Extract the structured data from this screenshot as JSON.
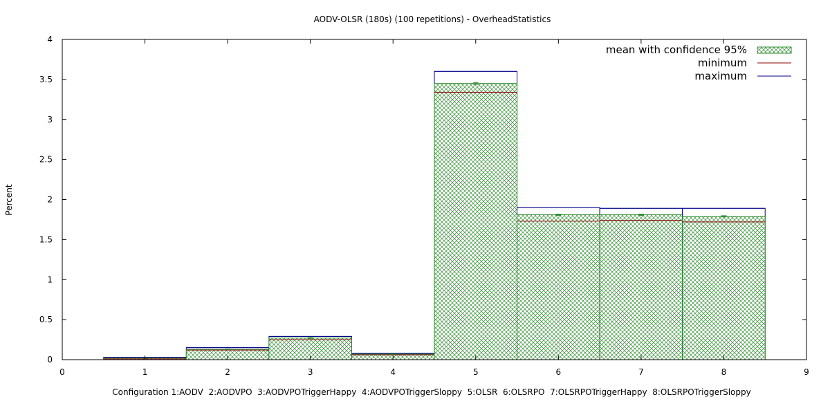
{
  "chart_data": {
    "type": "bar",
    "title": "AODV-OLSR (180s) (100 repetitions) - OverheadStatistics",
    "xlabel": "Configuration 1:AODV  2:AODVPO  3:AODVPOTriggerHappy  4:AODVPOTriggerSloppy  5:OLSR  6:OLSRPO  7:OLSRPOTriggerHappy  8:OLSRPOTriggerSloppy",
    "ylabel": "Percent",
    "xlim": [
      0,
      9
    ],
    "ylim": [
      0,
      4
    ],
    "xticks": [
      "0",
      "1",
      "2",
      "3",
      "4",
      "5",
      "6",
      "7",
      "8",
      "9"
    ],
    "yticks": [
      "0",
      "0.5",
      "1",
      "1.5",
      "2",
      "2.5",
      "3",
      "3.5",
      "4"
    ],
    "x": [
      1,
      2,
      3,
      4,
      5,
      6,
      7,
      8
    ],
    "series": [
      {
        "name": "mean with confidence 95%",
        "values": [
          0.02,
          0.13,
          0.27,
          0.07,
          3.45,
          1.81,
          1.81,
          1.79
        ],
        "ci": [
          0.003,
          0.004,
          0.006,
          0.003,
          0.012,
          0.008,
          0.008,
          0.008
        ]
      },
      {
        "name": "minimum",
        "values": [
          0.01,
          0.12,
          0.25,
          0.06,
          3.34,
          1.73,
          1.74,
          1.72
        ]
      },
      {
        "name": "maximum",
        "values": [
          0.03,
          0.15,
          0.29,
          0.08,
          3.6,
          1.9,
          1.89,
          1.89
        ]
      }
    ],
    "legend": "top-right",
    "grid": false,
    "colors": {
      "mean": "#2e8b2e",
      "minimum": "#8b0000",
      "maximum": "#00008b"
    }
  }
}
